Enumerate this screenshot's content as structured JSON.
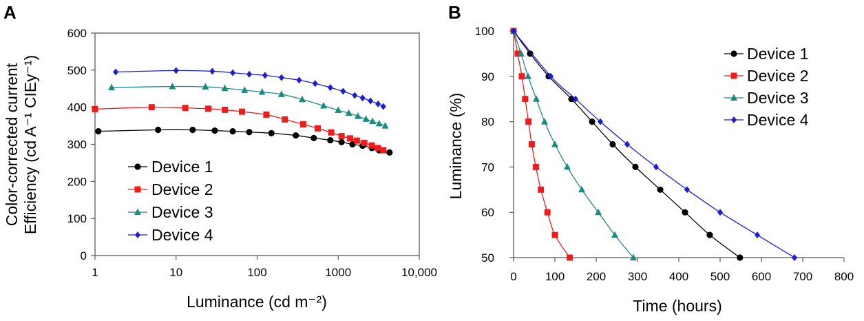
{
  "chart_data": [
    {
      "panel": "A",
      "type": "line",
      "xscale": "log",
      "xlabel": "Luminance (cd m⁻²)",
      "ylabel_line1": "Color-corrected current",
      "ylabel_line2": "Efficiency (cd A⁻¹ CIEy⁻¹)",
      "xlim": [
        1,
        10000
      ],
      "ylim": [
        0,
        600
      ],
      "xticks": [
        1,
        10,
        100,
        1000,
        10000
      ],
      "xtick_labels": [
        "1",
        "10",
        "100",
        "1000",
        "10,000"
      ],
      "yticks": [
        0,
        100,
        200,
        300,
        400,
        500,
        600
      ],
      "ytick_labels": [
        "0",
        "100",
        "200",
        "300",
        "400",
        "500",
        "600"
      ],
      "legend_position": "bottom-left",
      "series": [
        {
          "name": "Device 1",
          "color": "#000000",
          "marker": "circle",
          "x": [
            1.1,
            6,
            16,
            30,
            50,
            80,
            150,
            300,
            500,
            800,
            1100,
            1500,
            2000,
            2600,
            3200,
            4300
          ],
          "y": [
            335,
            339,
            339,
            337,
            335,
            333,
            330,
            324,
            317,
            311,
            306,
            300,
            296,
            290,
            284,
            278
          ]
        },
        {
          "name": "Device 2",
          "color": "#ee1c1c",
          "marker": "square",
          "x": [
            1,
            5,
            13,
            25,
            40,
            65,
            130,
            220,
            370,
            560,
            820,
            1100,
            1400,
            1700,
            2100,
            2600,
            3100,
            3600
          ],
          "y": [
            395,
            400,
            398,
            396,
            393,
            388,
            380,
            367,
            354,
            343,
            332,
            322,
            316,
            310,
            304,
            297,
            290,
            284
          ]
        },
        {
          "name": "Device 3",
          "color": "#1b8a80",
          "marker": "triangle",
          "x": [
            1.6,
            9,
            23,
            40,
            70,
            115,
            200,
            360,
            660,
            1000,
            1350,
            1750,
            2200,
            2650,
            3200,
            3800
          ],
          "y": [
            453,
            456,
            455,
            451,
            446,
            441,
            435,
            421,
            404,
            392,
            384,
            376,
            368,
            362,
            356,
            350
          ]
        },
        {
          "name": "Device 4",
          "color": "#1c1cd4",
          "marker": "diamond",
          "x": [
            1.8,
            10,
            28,
            50,
            80,
            125,
            200,
            330,
            520,
            800,
            1150,
            1600,
            2000,
            2500,
            3100,
            3600
          ],
          "y": [
            495,
            499,
            497,
            493,
            489,
            486,
            480,
            473,
            464,
            453,
            443,
            432,
            425,
            417,
            409,
            402
          ]
        }
      ]
    },
    {
      "panel": "B",
      "type": "line",
      "xlabel": "Time (hours)",
      "ylabel": "Luminance (%)",
      "xlim": [
        0,
        800
      ],
      "ylim": [
        50,
        100
      ],
      "xticks": [
        0,
        100,
        200,
        300,
        400,
        500,
        600,
        700,
        800
      ],
      "xtick_labels": [
        "0",
        "100",
        "200",
        "300",
        "400",
        "500",
        "600",
        "700",
        "800"
      ],
      "yticks": [
        50,
        60,
        70,
        80,
        90,
        100
      ],
      "ytick_labels": [
        "50",
        "60",
        "70",
        "80",
        "90",
        "100"
      ],
      "legend_position": "top-right",
      "series": [
        {
          "name": "Device 1",
          "color": "#000000",
          "marker": "circle",
          "x": [
            0,
            40,
            85,
            140,
            190,
            240,
            295,
            355,
            415,
            475,
            548
          ],
          "y": [
            100,
            95,
            90,
            85,
            80,
            75,
            70,
            65,
            60,
            55,
            50
          ]
        },
        {
          "name": "Device 2",
          "color": "#ee1c1c",
          "marker": "square",
          "x": [
            0,
            10,
            20,
            28,
            36,
            44,
            54,
            66,
            82,
            100,
            136
          ],
          "y": [
            100,
            95,
            90,
            85,
            80,
            75,
            70,
            65,
            60,
            55,
            50
          ]
        },
        {
          "name": "Device 3",
          "color": "#1b8a80",
          "marker": "triangle",
          "x": [
            0,
            18,
            35,
            55,
            75,
            100,
            130,
            165,
            205,
            245,
            290
          ],
          "y": [
            100,
            95,
            90,
            85,
            80,
            75,
            70,
            65,
            60,
            55,
            50
          ]
        },
        {
          "name": "Device 4",
          "color": "#1c1cd4",
          "marker": "diamond",
          "x": [
            0,
            90,
            150,
            210,
            275,
            345,
            420,
            500,
            590,
            680
          ],
          "y": [
            100,
            90,
            85,
            80,
            75,
            70,
            65,
            60,
            55,
            50
          ]
        }
      ]
    }
  ]
}
